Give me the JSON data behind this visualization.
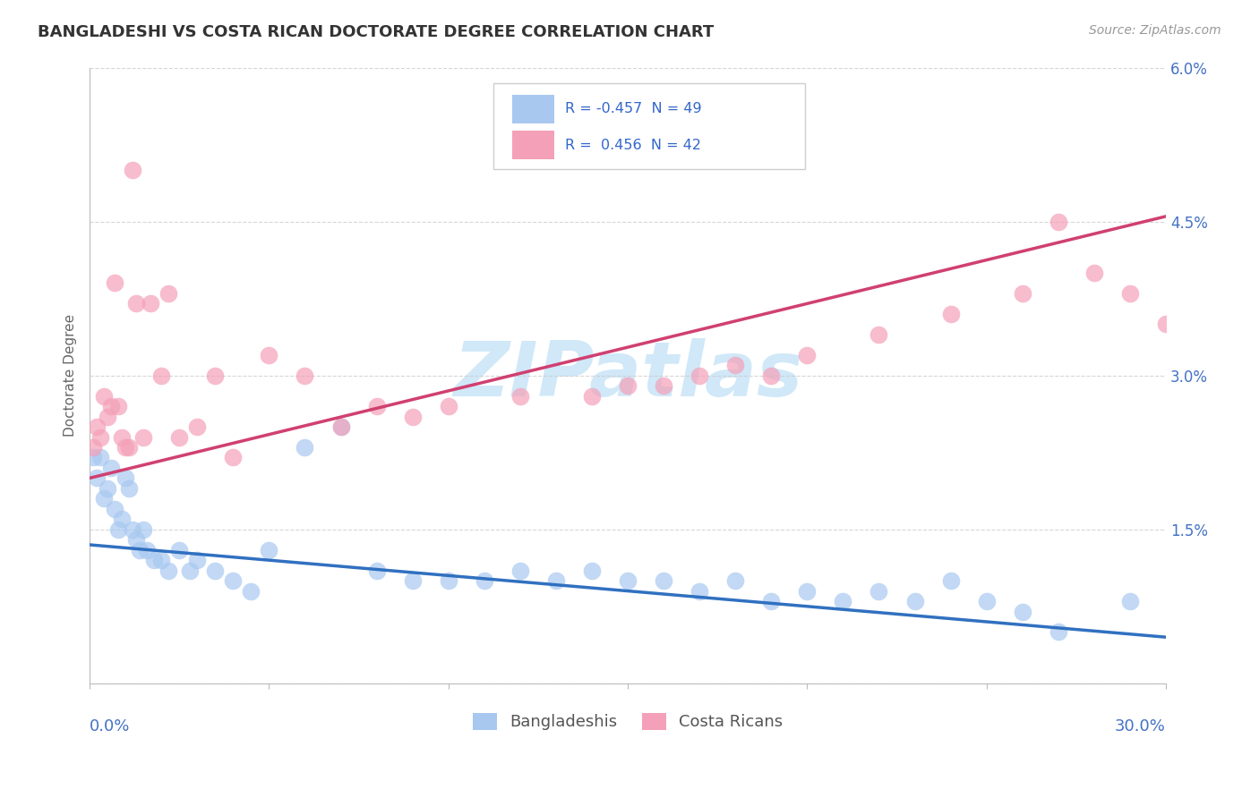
{
  "title": "BANGLADESHI VS COSTA RICAN DOCTORATE DEGREE CORRELATION CHART",
  "source": "Source: ZipAtlas.com",
  "ylabel": "Doctorate Degree",
  "xlim": [
    0.0,
    30.0
  ],
  "ylim": [
    0.0,
    6.0
  ],
  "yticks": [
    0.0,
    1.5,
    3.0,
    4.5,
    6.0
  ],
  "ytick_labels": [
    "",
    "1.5%",
    "3.0%",
    "4.5%",
    "6.0%"
  ],
  "background_color": "#ffffff",
  "grid_color": "#cccccc",
  "blue_scatter_color": "#a8c8f0",
  "pink_scatter_color": "#f4a0b8",
  "blue_line_color": "#3070c0",
  "pink_line_color": "#d04070",
  "watermark_color": "#d0e8f8",
  "bangladeshi_x": [
    0.1,
    0.2,
    0.3,
    0.4,
    0.5,
    0.6,
    0.7,
    0.8,
    0.9,
    1.0,
    1.1,
    1.2,
    1.3,
    1.4,
    1.5,
    1.6,
    1.8,
    2.0,
    2.2,
    2.5,
    2.8,
    3.0,
    3.5,
    4.0,
    4.5,
    5.0,
    6.0,
    7.0,
    8.0,
    9.0,
    10.0,
    11.0,
    12.0,
    13.0,
    14.0,
    15.0,
    16.0,
    17.0,
    18.0,
    19.0,
    20.0,
    21.0,
    22.0,
    23.0,
    24.0,
    25.0,
    26.0,
    27.0,
    29.0
  ],
  "bangladeshi_y": [
    2.2,
    2.0,
    2.2,
    1.8,
    1.9,
    2.1,
    1.7,
    1.5,
    1.6,
    2.0,
    1.9,
    1.5,
    1.4,
    1.3,
    1.5,
    1.3,
    1.2,
    1.2,
    1.1,
    1.3,
    1.1,
    1.2,
    1.1,
    1.0,
    0.9,
    1.3,
    2.3,
    2.5,
    1.1,
    1.0,
    1.0,
    1.0,
    1.1,
    1.0,
    1.1,
    1.0,
    1.0,
    0.9,
    1.0,
    0.8,
    0.9,
    0.8,
    0.9,
    0.8,
    1.0,
    0.8,
    0.7,
    0.5,
    0.8
  ],
  "costarican_x": [
    0.1,
    0.2,
    0.3,
    0.4,
    0.5,
    0.6,
    0.7,
    0.8,
    0.9,
    1.0,
    1.1,
    1.2,
    1.3,
    1.5,
    1.7,
    2.0,
    2.2,
    2.5,
    3.0,
    3.5,
    4.0,
    5.0,
    6.0,
    7.0,
    8.0,
    9.0,
    10.0,
    12.0,
    14.0,
    15.0,
    16.0,
    17.0,
    18.0,
    19.0,
    20.0,
    22.0,
    24.0,
    26.0,
    27.0,
    28.0,
    29.0,
    30.0
  ],
  "costarican_y": [
    2.3,
    2.5,
    2.4,
    2.8,
    2.6,
    2.7,
    3.9,
    2.7,
    2.4,
    2.3,
    2.3,
    5.0,
    3.7,
    2.4,
    3.7,
    3.0,
    3.8,
    2.4,
    2.5,
    3.0,
    2.2,
    3.2,
    3.0,
    2.5,
    2.7,
    2.6,
    2.7,
    2.8,
    2.8,
    2.9,
    2.9,
    3.0,
    3.1,
    3.0,
    3.2,
    3.4,
    3.6,
    3.8,
    4.5,
    4.0,
    3.8,
    3.5
  ],
  "blue_line_x0": 0.0,
  "blue_line_y0": 1.35,
  "blue_line_x1": 30.0,
  "blue_line_y1": 0.45,
  "pink_line_x0": 0.0,
  "pink_line_y0": 2.0,
  "pink_line_x1": 30.0,
  "pink_line_y1": 4.55
}
